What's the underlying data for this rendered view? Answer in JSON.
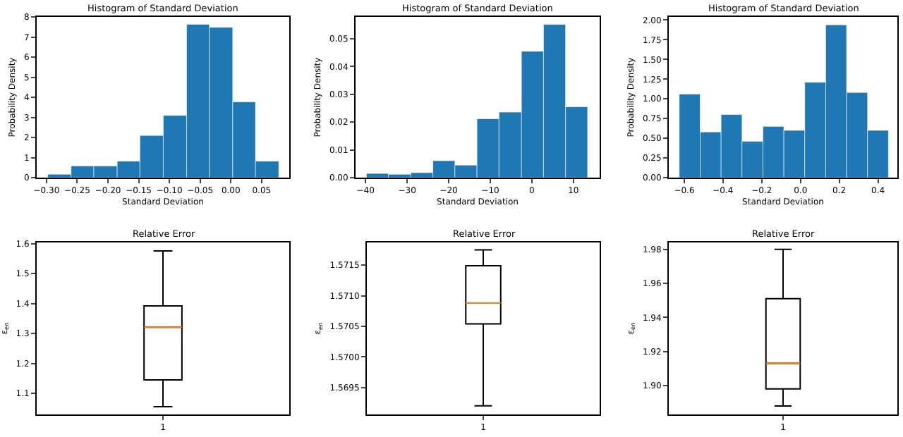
{
  "chart_data": [
    {
      "type": "histogram",
      "title": "Histogram of Standard Deviation",
      "xlabel": "Standard Deviation",
      "ylabel": "Probability Density",
      "color": "#1f77b4",
      "bins": [
        -0.298,
        -0.26,
        -0.223,
        -0.185,
        -0.148,
        -0.11,
        -0.072,
        -0.035,
        0.003,
        0.04,
        0.078
      ],
      "values": [
        0.17,
        0.58,
        0.58,
        0.82,
        2.1,
        3.1,
        7.63,
        7.48,
        3.77,
        0.82
      ],
      "xlim": [
        -0.316,
        0.095
      ],
      "ylim": [
        0,
        8
      ],
      "xticks": [
        {
          "value": -0.3,
          "label": "−0.30"
        },
        {
          "value": -0.25,
          "label": "−0.25"
        },
        {
          "value": -0.2,
          "label": "−0.20"
        },
        {
          "value": -0.15,
          "label": "−0.15"
        },
        {
          "value": -0.1,
          "label": "−0.10"
        },
        {
          "value": -0.05,
          "label": "−0.05"
        },
        {
          "value": 0,
          "label": "0.00"
        },
        {
          "value": 0.05,
          "label": "0.05"
        }
      ],
      "yticks": [
        0,
        1,
        2,
        3,
        4,
        5,
        6,
        7,
        8
      ]
    },
    {
      "type": "histogram",
      "title": "Histogram of Standard Deviation",
      "xlabel": "Standard Deviation",
      "ylabel": "Probability Density",
      "color": "#1f77b4",
      "bins": [
        -39.8,
        -34.5,
        -29.1,
        -23.8,
        -18.5,
        -13.2,
        -7.9,
        -2.5,
        2.8,
        8.1,
        13.4
      ],
      "values": [
        0.0015,
        0.0012,
        0.0018,
        0.0061,
        0.0045,
        0.0212,
        0.0236,
        0.0455,
        0.0552,
        0.0255
      ],
      "xlim": [
        -42.4,
        16.3
      ],
      "ylim": [
        0,
        0.0579
      ],
      "xticks": [
        {
          "value": -40,
          "label": "−40"
        },
        {
          "value": -30,
          "label": "−30"
        },
        {
          "value": -20,
          "label": "−20"
        },
        {
          "value": -10,
          "label": "−10"
        },
        0,
        10
      ],
      "yticks": [
        {
          "value": 0,
          "label": "0.00"
        },
        {
          "value": 0.01,
          "label": "0.01"
        },
        {
          "value": 0.02,
          "label": "0.02"
        },
        {
          "value": 0.03,
          "label": "0.03"
        },
        {
          "value": 0.04,
          "label": "0.04"
        },
        {
          "value": 0.05,
          "label": "0.05"
        }
      ]
    },
    {
      "type": "histogram",
      "title": "Histogram of Standard Deviation",
      "xlabel": "Standard Deviation",
      "ylabel": "Probability Density",
      "color": "#1f77b4",
      "bins": [
        -0.626,
        -0.518,
        -0.41,
        -0.302,
        -0.194,
        -0.086,
        0.022,
        0.13,
        0.238,
        0.346,
        0.454
      ],
      "values": [
        1.06,
        0.58,
        0.8,
        0.46,
        0.65,
        0.6,
        1.21,
        1.94,
        1.08,
        0.6
      ],
      "xlim": [
        -0.68,
        0.5
      ],
      "ylim": [
        0,
        2.04
      ],
      "xticks": [
        {
          "value": -0.6,
          "label": "−0.6"
        },
        {
          "value": -0.4,
          "label": "−0.4"
        },
        {
          "value": -0.2,
          "label": "−0.2"
        },
        {
          "value": 0,
          "label": "0.0"
        },
        0.2,
        0.4
      ],
      "yticks": [
        {
          "value": 0,
          "label": "0.00"
        },
        {
          "value": 0.25,
          "label": "0.25"
        },
        {
          "value": 0.5,
          "label": "0.50"
        },
        {
          "value": 0.75,
          "label": "0.75"
        },
        {
          "value": 1,
          "label": "1.00"
        },
        {
          "value": 1.25,
          "label": "1.25"
        },
        {
          "value": 1.5,
          "label": "1.50"
        },
        {
          "value": 1.75,
          "label": "1.75"
        },
        {
          "value": 2,
          "label": "2.00"
        }
      ]
    },
    {
      "type": "box",
      "title": "Relative Error",
      "ylabel": "ε$_{en}$",
      "color": "#000000",
      "categories": [
        "1"
      ],
      "boxes": [
        {
          "low": 1.056,
          "q1": 1.145,
          "median": 1.321,
          "q3": 1.392,
          "high": 1.576
        }
      ],
      "ylim": [
        1.03,
        1.604
      ],
      "yticks": [
        1.1,
        1.2,
        1.3,
        1.4,
        1.5,
        1.6
      ]
    },
    {
      "type": "box",
      "title": "Relative Error",
      "ylabel": "ε$_{en}$",
      "color": "#000000",
      "categories": [
        "1"
      ],
      "boxes": [
        {
          "low": 1.5692,
          "q1": 1.57054,
          "median": 1.57088,
          "q3": 1.57149,
          "high": 1.57175
        }
      ],
      "ylim": [
        1.56906,
        1.57187
      ],
      "yticks": [
        1.5695,
        {
          "value": 1.57,
          "label": "1.5700"
        },
        1.5705,
        {
          "value": 1.571,
          "label": "1.5710"
        },
        1.5715
      ]
    },
    {
      "type": "box",
      "title": "Relative Error",
      "ylabel": "ε$_{en}$",
      "color": "#000000",
      "categories": [
        "1"
      ],
      "boxes": [
        {
          "low": 1.888,
          "q1": 1.898,
          "median": 1.913,
          "q3": 1.951,
          "high": 1.98
        }
      ],
      "ylim": [
        1.883,
        1.984
      ],
      "yticks": [
        {
          "value": 1.9,
          "label": "1.90"
        },
        1.92,
        1.94,
        1.96,
        {
          "value": 1.98,
          "label": "1.98"
        }
      ]
    }
  ]
}
